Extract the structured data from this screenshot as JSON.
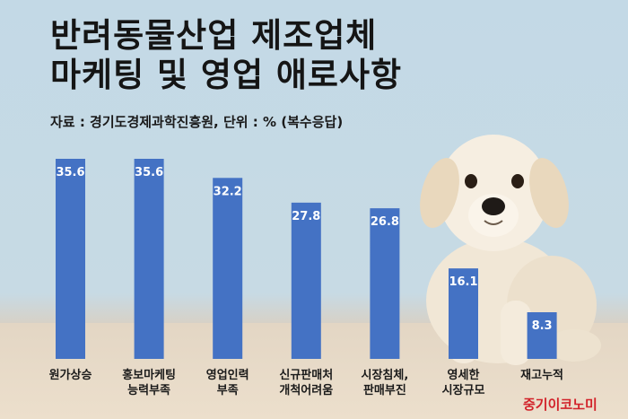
{
  "header": {
    "title_line1": "반려동물산업 제조업체",
    "title_line2": "마케팅 및 영업 애로사항",
    "source": "자료 : 경기도경제과학진흥원, 단위 : % (복수응답)"
  },
  "brand": "중기이코노미",
  "colors": {
    "bar": "#4472c4",
    "value_label": "#ffffff",
    "brand": "#d2232a"
  },
  "chart_data": {
    "type": "bar",
    "categories": [
      [
        "원가상승"
      ],
      [
        "홍보마케팅",
        "능력부족"
      ],
      [
        "영업인력",
        "부족"
      ],
      [
        "신규판매처",
        "개척어려움"
      ],
      [
        "시장침체,",
        "판매부진"
      ],
      [
        "영세한",
        "시장규모"
      ],
      [
        "재고누적"
      ]
    ],
    "values": [
      35.6,
      35.6,
      32.2,
      27.8,
      26.8,
      16.1,
      8.3
    ],
    "title": "반려동물산업 제조업체 마케팅 및 영업 애로사항",
    "unit": "%",
    "ylim": [
      0,
      40
    ]
  }
}
